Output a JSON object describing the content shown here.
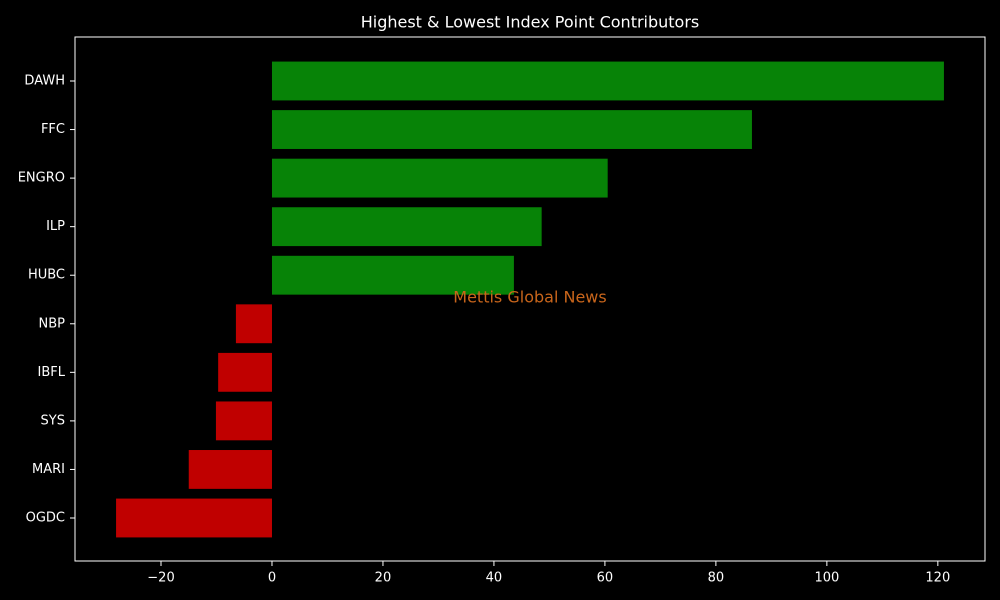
{
  "chart_data": {
    "type": "barh",
    "title": "Highest & Lowest Index Point Contributors",
    "watermark": "Mettis Global News",
    "categories": [
      "DAWH",
      "FFC",
      "ENGRO",
      "ILP",
      "HUBC",
      "NBP",
      "IBFL",
      "SYS",
      "MARI",
      "OGDC"
    ],
    "values": [
      121.1,
      86.5,
      60.5,
      48.6,
      43.6,
      -6.5,
      -9.7,
      -10.1,
      -15.0,
      -28.1
    ],
    "colors": [
      "#078307",
      "#078307",
      "#078307",
      "#078307",
      "#078307",
      "#c00000",
      "#c00000",
      "#c00000",
      "#c00000",
      "#c00000"
    ],
    "xlim": [
      -35.5,
      128.5
    ],
    "xticks": [
      {
        "value": -20,
        "label": "−20"
      },
      0,
      20,
      40,
      60,
      80,
      100,
      120
    ],
    "grid": false
  }
}
